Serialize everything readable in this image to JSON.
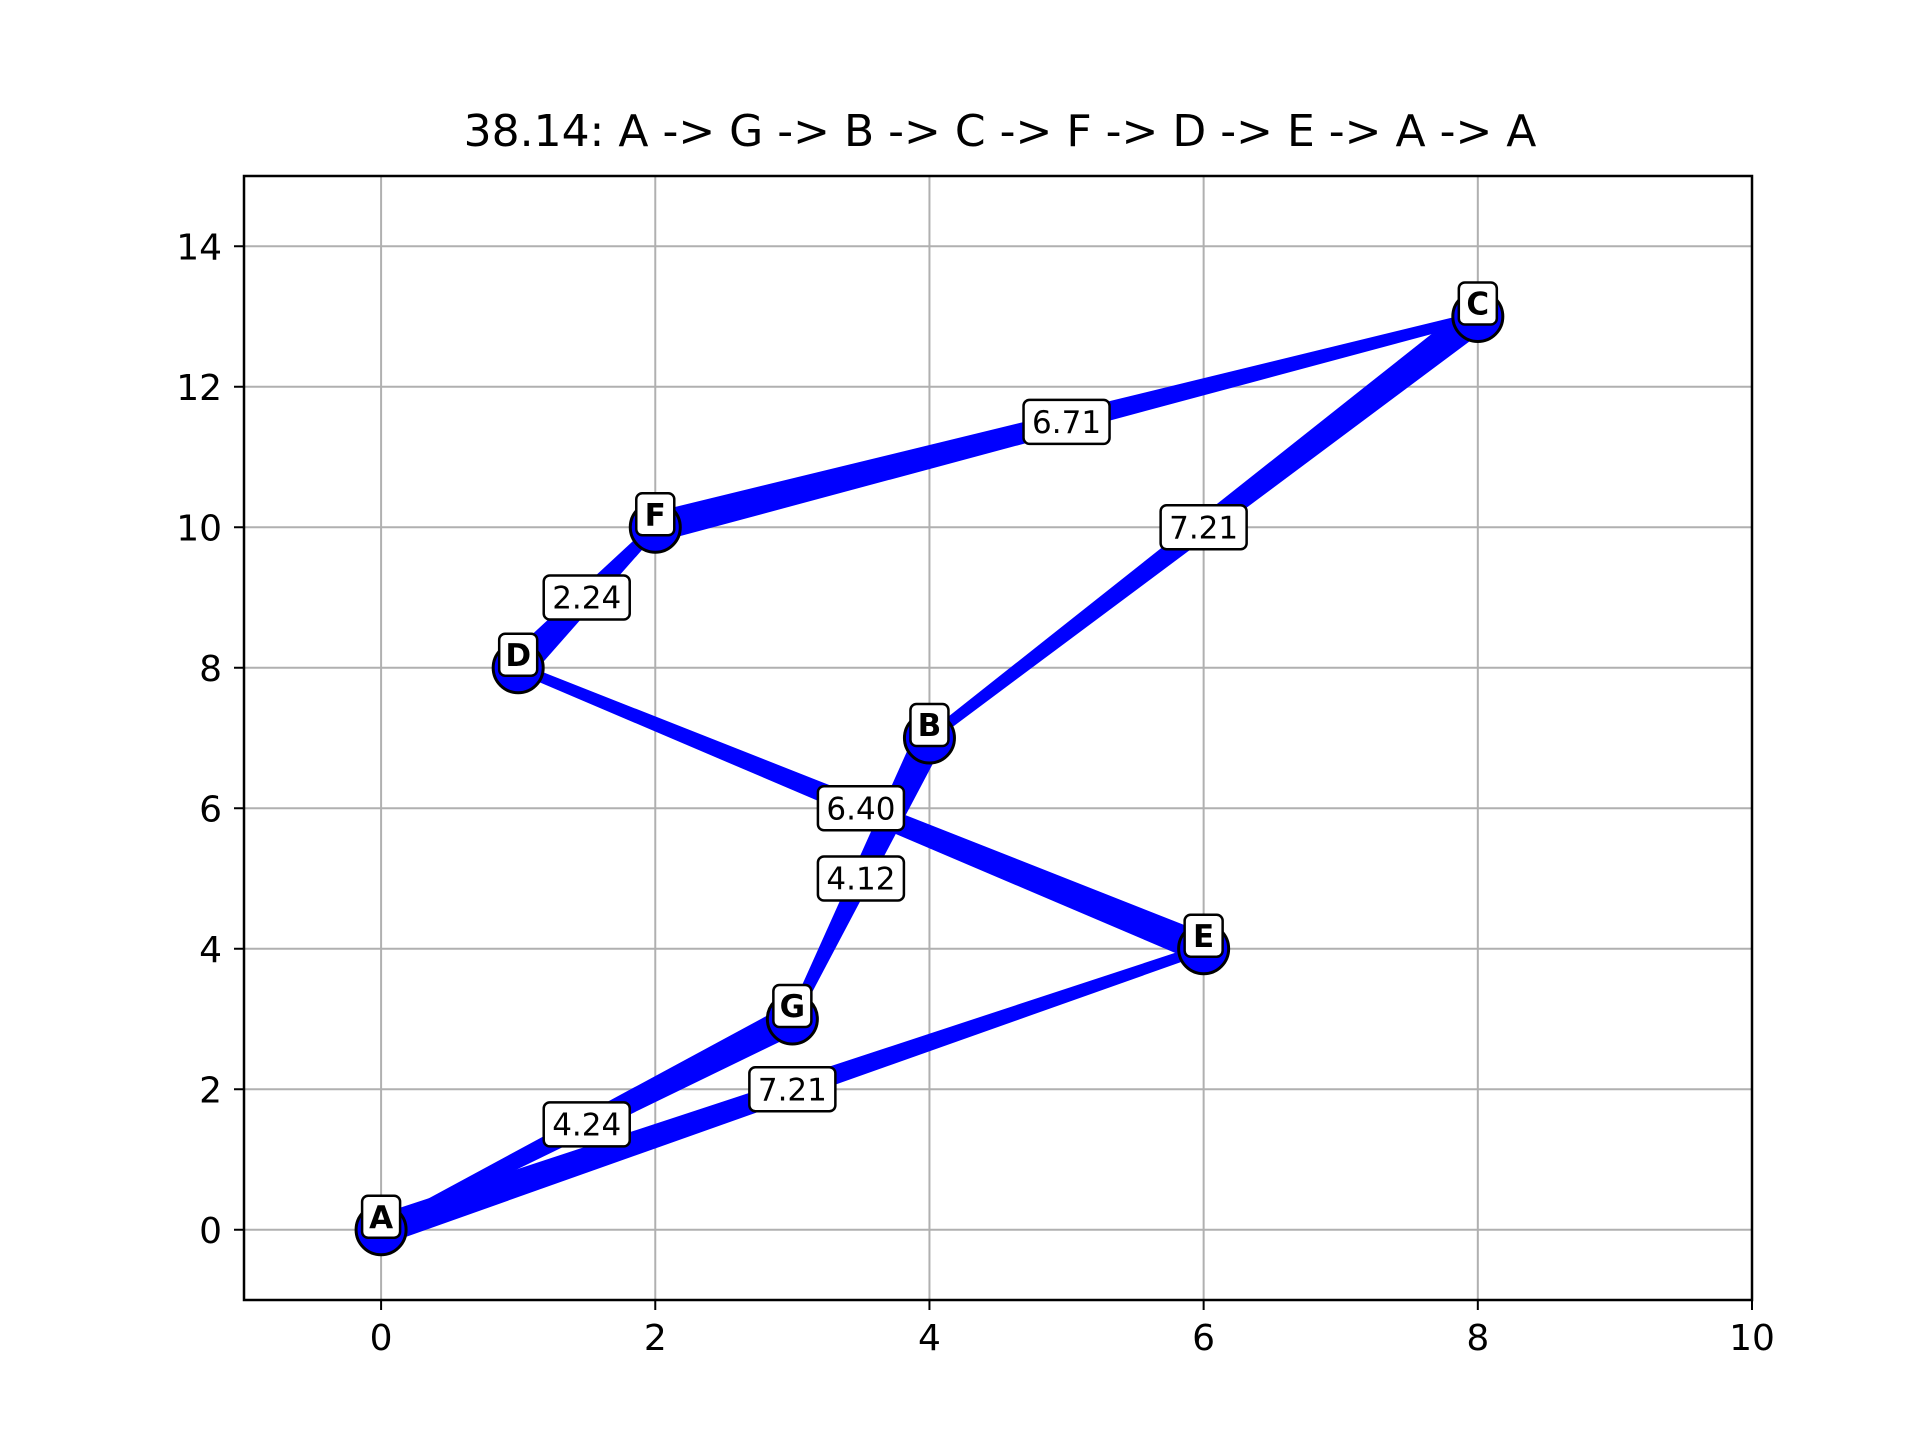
{
  "chart_data": {
    "type": "scatter",
    "title": "38.14: A -> G -> B -> C -> F -> D -> E -> A -> A",
    "xlabel": "",
    "ylabel": "",
    "xlim": [
      -1,
      10
    ],
    "ylim": [
      -1,
      15
    ],
    "xticks": [
      0,
      2,
      4,
      6,
      8,
      10
    ],
    "yticks": [
      0,
      2,
      4,
      6,
      8,
      10,
      12,
      14
    ],
    "grid": true,
    "node_color": "#0000ff",
    "edge_color": "#0000ff",
    "nodes": [
      {
        "name": "A",
        "x": 0,
        "y": 0
      },
      {
        "name": "B",
        "x": 4,
        "y": 7
      },
      {
        "name": "C",
        "x": 8,
        "y": 13
      },
      {
        "name": "D",
        "x": 1,
        "y": 8
      },
      {
        "name": "E",
        "x": 6,
        "y": 4
      },
      {
        "name": "F",
        "x": 2,
        "y": 10
      },
      {
        "name": "G",
        "x": 3,
        "y": 3
      }
    ],
    "route": [
      "A",
      "G",
      "B",
      "C",
      "F",
      "D",
      "E",
      "A",
      "A"
    ],
    "edges": [
      {
        "from": "A",
        "to": "G",
        "label": "4.24"
      },
      {
        "from": "G",
        "to": "B",
        "label": "4.12"
      },
      {
        "from": "B",
        "to": "C",
        "label": "7.21"
      },
      {
        "from": "C",
        "to": "F",
        "label": "6.71"
      },
      {
        "from": "F",
        "to": "D",
        "label": "2.24"
      },
      {
        "from": "D",
        "to": "E",
        "label": "6.40"
      },
      {
        "from": "E",
        "to": "A",
        "label": "7.21"
      }
    ]
  }
}
